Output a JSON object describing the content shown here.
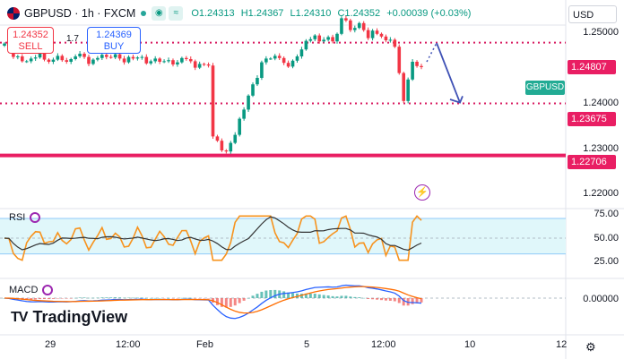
{
  "legend": {
    "symbol": "GBPUSD · 1h · FXCM",
    "open": "O1.24313",
    "high": "H1.24367",
    "low": "L1.24310",
    "close": "C1.24352",
    "change": "+0.00039 (+0.03%)"
  },
  "quote": {
    "sell_price": "1.24352",
    "sell_label": "SELL",
    "spread": "1.7",
    "buy_price": "1.24369",
    "buy_label": "BUY"
  },
  "currency": "USD",
  "price_axis": {
    "ticks": [
      "1.25000",
      "1.24000",
      "1.23000",
      "1.22000"
    ],
    "tags": {
      "level_upper": "1.24807",
      "level_mid": "1.23675",
      "level_low": "1.22706"
    },
    "symbol_tag": "GBPUSD"
  },
  "rsi": {
    "label": "RSI",
    "ticks": [
      "75.00",
      "50.00",
      "25.00"
    ]
  },
  "macd": {
    "label": "MACD",
    "ticks": [
      "0.00000"
    ]
  },
  "time_axis": [
    "29",
    "12:00",
    "Feb",
    "5",
    "12:00",
    "10",
    "12"
  ],
  "logo": "TradingView",
  "colors": {
    "up": "#089981",
    "down": "#f23645",
    "support": "#e91e63",
    "level_dotted": "#d81b60",
    "projection": "#3f51b5",
    "rsi_line": "#f7931e",
    "rsi_ma": "#333333",
    "rsi_band": "#e0f7fa"
  },
  "chart_data": {
    "type": "candlestick",
    "x": [
      "29",
      "12:00",
      "Feb",
      "5",
      "12:00",
      "10",
      "12"
    ],
    "close_path": [
      1.2479,
      1.2472,
      1.2454,
      1.2455,
      1.2446,
      1.2446,
      1.2451,
      1.2453,
      1.246,
      1.2449,
      1.2445,
      1.2449,
      1.2456,
      1.2448,
      1.2445,
      1.245,
      1.2455,
      1.246,
      1.2454,
      1.2441,
      1.2449,
      1.2452,
      1.2458,
      1.2454,
      1.2453,
      1.2459,
      1.2451,
      1.2444,
      1.2454,
      1.2451,
      1.2453,
      1.2454,
      1.2442,
      1.2446,
      1.2451,
      1.2445,
      1.2446,
      1.2448,
      1.244,
      1.2444,
      1.2452,
      1.245,
      1.2446,
      1.2434,
      1.2441,
      1.244,
      1.2438,
      1.2306,
      1.2298,
      1.228,
      1.2278,
      1.2294,
      1.2309,
      1.2339,
      1.2356,
      1.2382,
      1.2403,
      1.2415,
      1.2444,
      1.2451,
      1.2451,
      1.2456,
      1.2452,
      1.2443,
      1.2436,
      1.2447,
      1.2455,
      1.2468,
      1.2484,
      1.2487,
      1.2494,
      1.2483,
      1.2486,
      1.2491,
      1.2483,
      1.2497,
      1.2526,
      1.2522,
      1.2504,
      1.2508,
      1.2517,
      1.2504,
      1.2489,
      1.2503,
      1.2497,
      1.2492,
      1.2485,
      1.2486,
      1.2473,
      1.2424,
      1.2372,
      1.2412,
      1.2445,
      1.2437,
      1.2435
    ],
    "levels": [
      1.24807,
      1.23675,
      1.22706
    ],
    "rsi_ticks": [
      75,
      50,
      25
    ],
    "macd_ticks": [
      0
    ]
  }
}
